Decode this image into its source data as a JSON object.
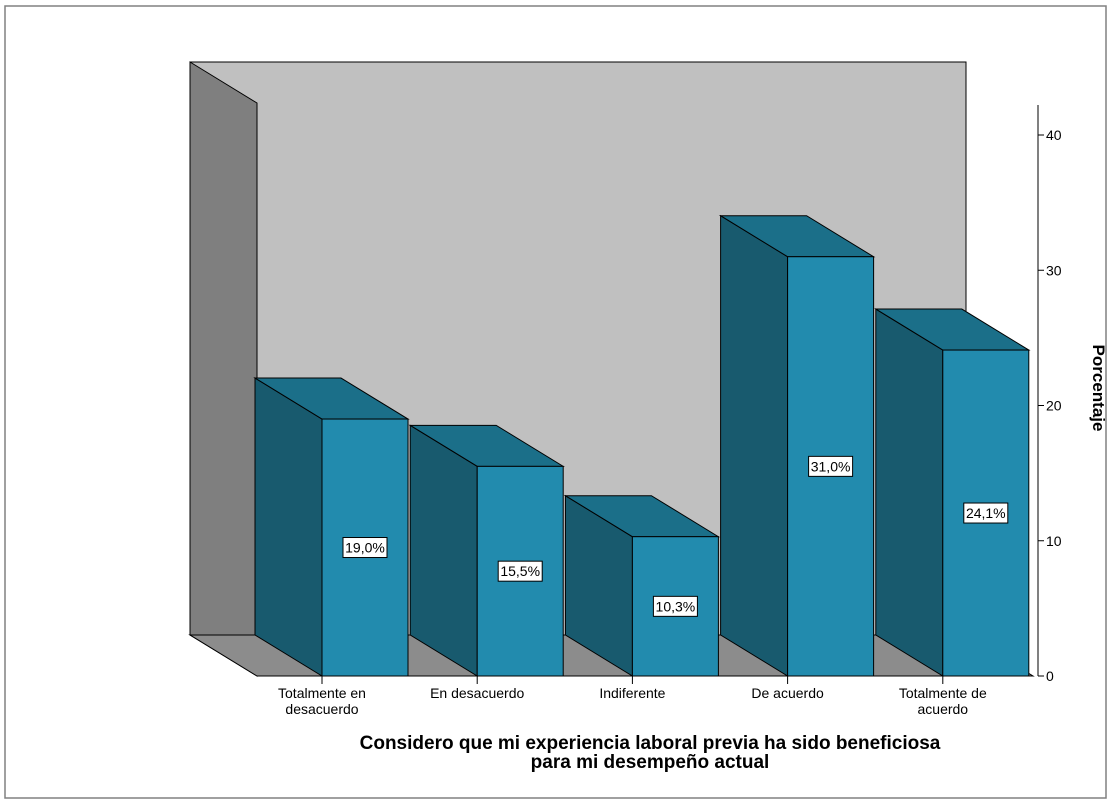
{
  "chart_data": {
    "type": "bar",
    "categories": [
      [
        "Totalmente en",
        "desacuerdo"
      ],
      [
        "En desacuerdo"
      ],
      [
        "Indiferente"
      ],
      [
        "De acuerdo"
      ],
      [
        "Totalmente de",
        "acuerdo"
      ]
    ],
    "values": [
      19.0,
      15.5,
      10.3,
      31.0,
      24.1
    ],
    "data_labels": [
      "19,0%",
      "15,5%",
      "10,3%",
      "31,0%",
      "24,1%"
    ],
    "xlabel": [
      "Considero que mi experiencia laboral previa ha sido beneficiosa",
      "para mi desempeño actual"
    ],
    "ylabel": "Porcentaje",
    "ylim": [
      0,
      40
    ],
    "yticks": [
      0,
      10,
      20,
      30,
      40
    ],
    "ytick_labels": [
      "0",
      "10",
      "20",
      "30",
      "40"
    ],
    "three_d": true,
    "y_axis_position": "right",
    "colors": {
      "bar_front": "#228bae",
      "bar_side": "#185a6e",
      "bar_top": "#1b6f89",
      "back_wall": "#c0c0c0",
      "side_wall": "#7f7f7f",
      "floor": "#8c8c8c",
      "outline": "#000000"
    }
  }
}
